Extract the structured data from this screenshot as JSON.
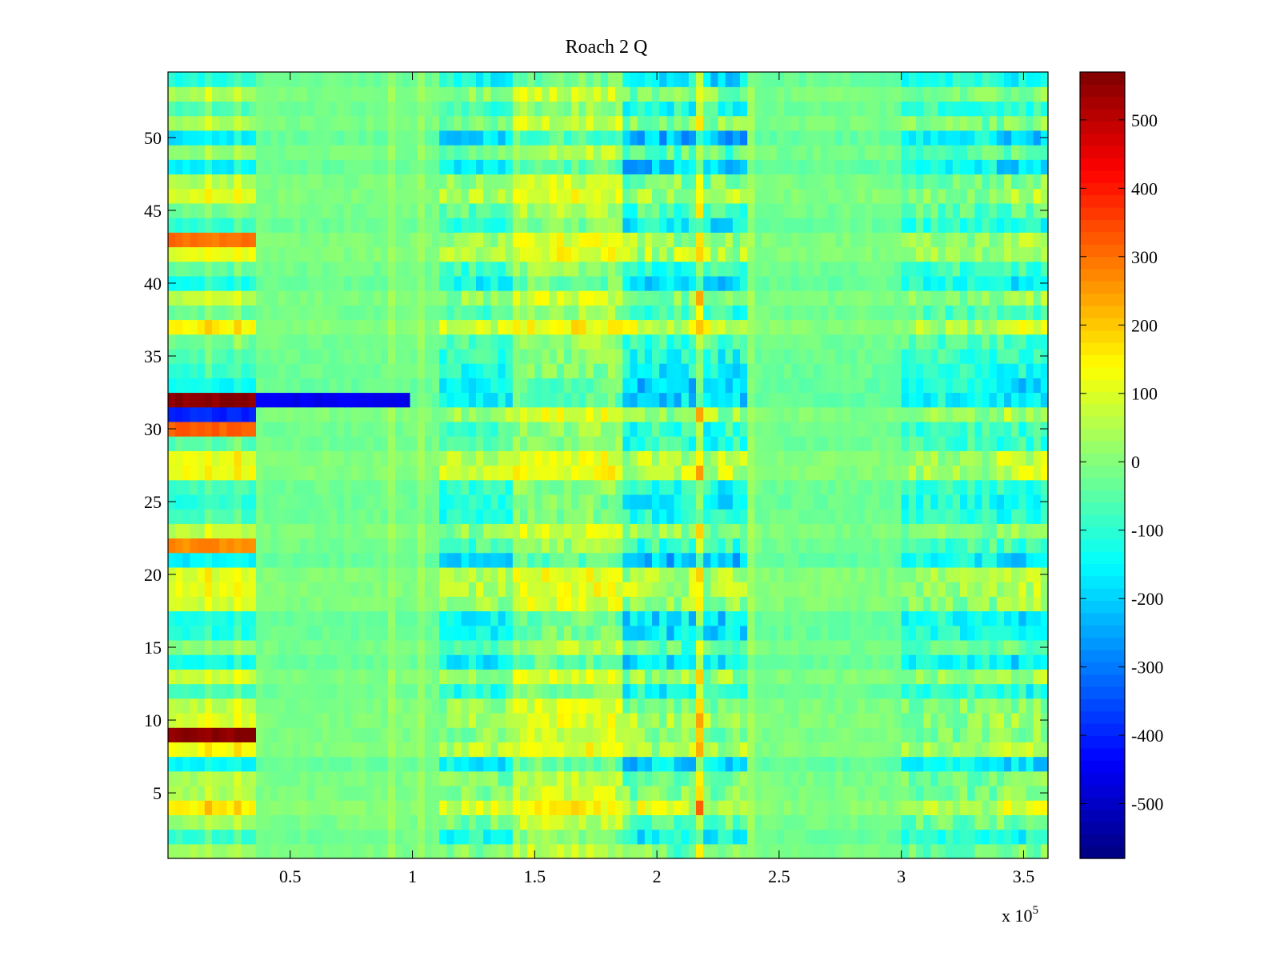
{
  "chart_data": {
    "type": "heatmap",
    "title": "Roach 2 Q",
    "xlabel": "",
    "ylabel": "",
    "x_multiplier_label": "x 10",
    "x_multiplier_exponent": "5",
    "xlim": [
      0,
      3.6
    ],
    "ylim": [
      0.5,
      54.5
    ],
    "x_ticks": [
      0.5,
      1,
      1.5,
      2,
      2.5,
      3,
      3.5
    ],
    "x_tick_labels": [
      "0.5",
      "1",
      "1.5",
      "2",
      "2.5",
      "3",
      "3.5"
    ],
    "y_ticks": [
      5,
      10,
      15,
      20,
      25,
      30,
      35,
      40,
      45,
      50
    ],
    "y_tick_labels": [
      "5",
      "10",
      "15",
      "20",
      "25",
      "30",
      "35",
      "40",
      "45",
      "50"
    ],
    "colorbar": {
      "colormap": "jet",
      "clim": [
        -580,
        570
      ],
      "ticks": [
        500,
        400,
        300,
        200,
        100,
        0,
        -100,
        -200,
        -300,
        -400,
        -500
      ],
      "tick_labels": [
        "500",
        "400",
        "300",
        "200",
        "100",
        "0",
        "-100",
        "-200",
        "-300",
        "-400",
        "-500"
      ]
    },
    "rows": 54,
    "notable_features": [
      {
        "row": 32,
        "x_range": [
          0,
          0.37
        ],
        "value": 560
      },
      {
        "row": 9,
        "x_range": [
          0,
          0.37
        ],
        "value": 560
      },
      {
        "row": 32,
        "x_range": [
          0.37,
          1.0
        ],
        "value": -450
      },
      {
        "row": 31,
        "x_range": [
          0,
          0.37
        ],
        "value": -400
      },
      {
        "row": 30,
        "x_range": [
          0,
          0.37
        ],
        "value": 320
      },
      {
        "row": 43,
        "x_range": [
          0,
          0.37
        ],
        "value": 300
      },
      {
        "row": 22,
        "x_range": [
          0,
          0.37
        ],
        "value": 270
      }
    ],
    "grid": false
  }
}
